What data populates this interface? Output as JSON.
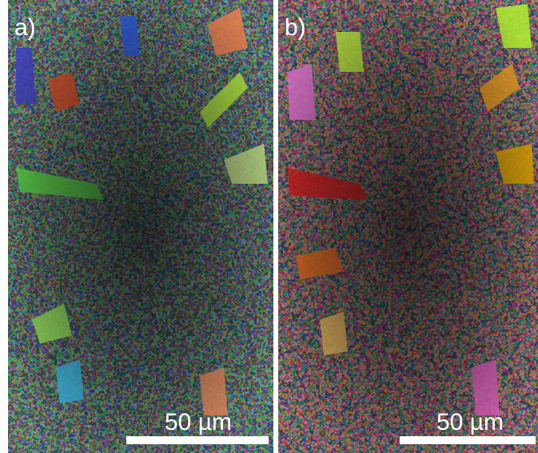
{
  "panels": [
    {
      "label": "a)",
      "scale_bar": "50 µm"
    },
    {
      "label": "b)",
      "scale_bar": "50 µm"
    }
  ]
}
